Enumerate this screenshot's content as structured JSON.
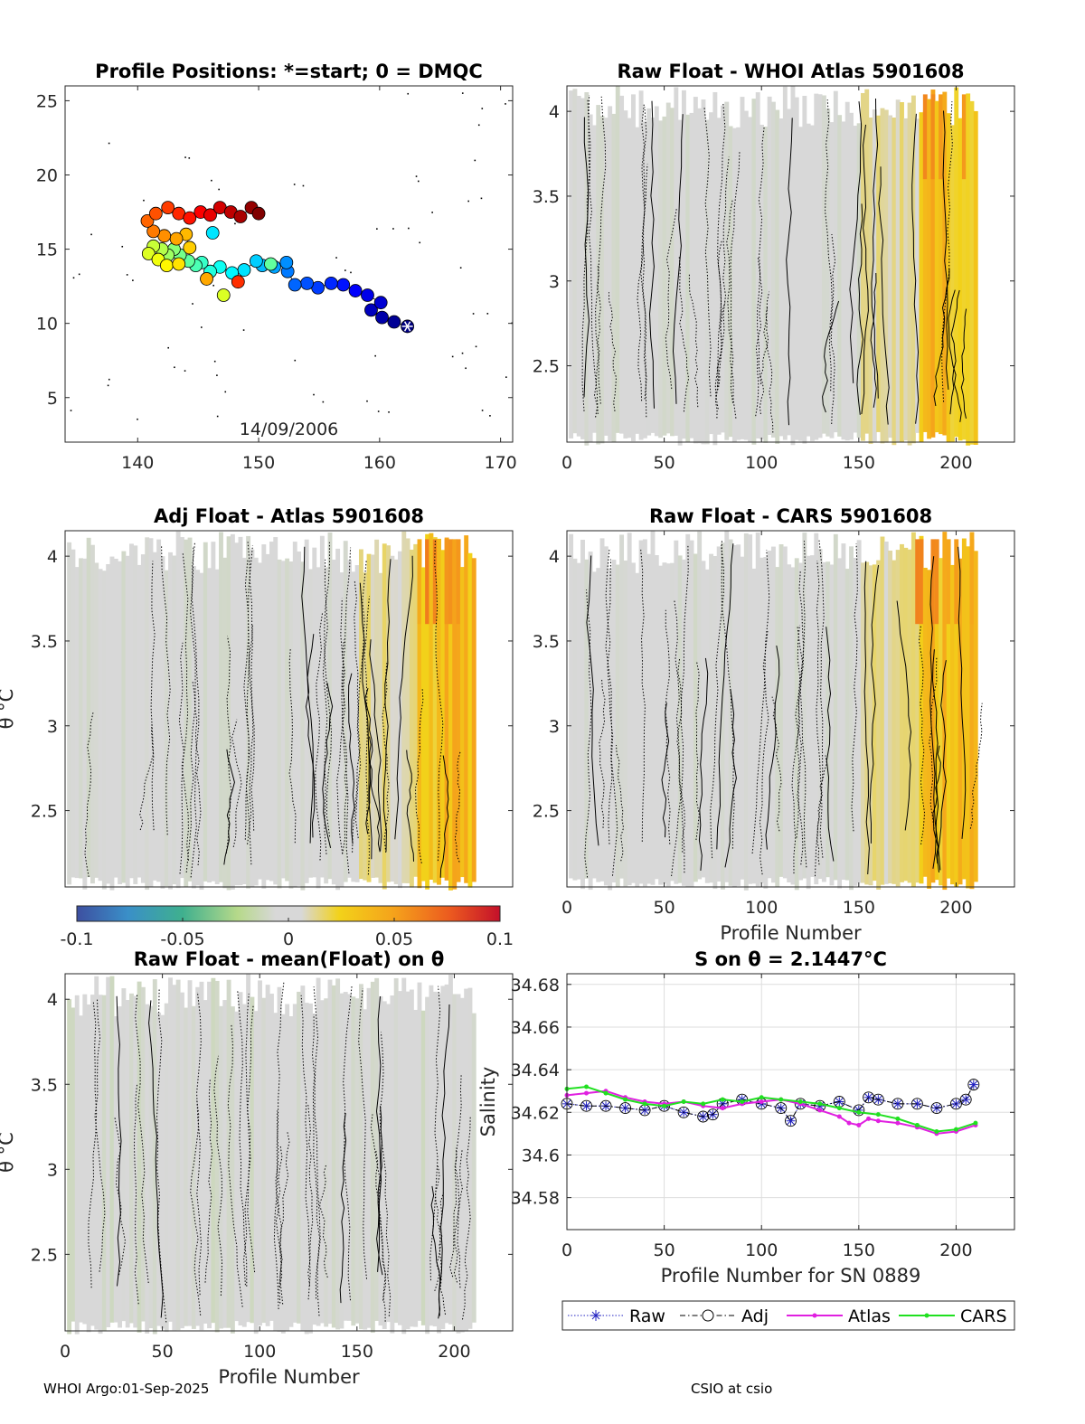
{
  "footer": {
    "left": "WHOI Argo:01-Sep-2025",
    "right": "CSIO at csio"
  },
  "colorbar": {
    "min": -0.1,
    "max": 0.1,
    "ticks": [
      -0.1,
      -0.05,
      0,
      0.05,
      0.1
    ],
    "tick_labels": [
      "-0.1",
      "-0.05",
      "0",
      "0.05",
      "0.1"
    ],
    "colormap": "parula-like diverging"
  },
  "chart_data": [
    {
      "id": "positions",
      "type": "scatter",
      "title": "Profile Positions: *=start; 0 = DMQC",
      "xlim": [
        134,
        171
      ],
      "ylim": [
        2,
        26
      ],
      "xticks": [
        140,
        150,
        160,
        170
      ],
      "yticks": [
        5,
        10,
        15,
        20,
        25
      ],
      "annotation": "14/09/2006",
      "track": [
        [
          162.3,
          9.8
        ],
        [
          161.2,
          10.1
        ],
        [
          160.2,
          10.4
        ],
        [
          159.3,
          10.9
        ],
        [
          160.1,
          11.4
        ],
        [
          159.0,
          11.9
        ],
        [
          158.0,
          12.2
        ],
        [
          157.0,
          12.6
        ],
        [
          156.0,
          12.7
        ],
        [
          154.9,
          12.4
        ],
        [
          154.0,
          12.7
        ],
        [
          153.0,
          12.6
        ],
        [
          152.4,
          13.5
        ],
        [
          152.3,
          14.1
        ],
        [
          151.3,
          13.8
        ],
        [
          150.3,
          13.9
        ],
        [
          149.8,
          14.2
        ],
        [
          148.8,
          13.6
        ],
        [
          147.8,
          13.4
        ],
        [
          146.8,
          13.8
        ],
        [
          146.0,
          13.5
        ],
        [
          145.3,
          14.1
        ],
        [
          144.8,
          13.9
        ],
        [
          144.2,
          14.2
        ],
        [
          143.5,
          14.6
        ],
        [
          143.0,
          15.0
        ],
        [
          142.5,
          14.6
        ],
        [
          142.0,
          15.0
        ],
        [
          141.3,
          15.2
        ],
        [
          140.9,
          14.7
        ],
        [
          141.7,
          14.3
        ],
        [
          142.4,
          13.9
        ],
        [
          143.4,
          14.0
        ],
        [
          144.3,
          15.1
        ],
        [
          144.0,
          16.0
        ],
        [
          143.2,
          15.7
        ],
        [
          142.2,
          15.9
        ],
        [
          141.3,
          16.2
        ],
        [
          140.8,
          16.9
        ],
        [
          141.5,
          17.4
        ],
        [
          142.5,
          17.8
        ],
        [
          143.4,
          17.4
        ],
        [
          144.3,
          17.1
        ],
        [
          145.2,
          17.5
        ],
        [
          146.0,
          17.3
        ],
        [
          146.8,
          17.8
        ],
        [
          147.7,
          17.5
        ],
        [
          148.5,
          17.2
        ],
        [
          149.4,
          17.8
        ],
        [
          150.0,
          17.4
        ]
      ],
      "extra_points": [
        [
          146.2,
          16.1
        ],
        [
          151.0,
          14.0
        ],
        [
          147.1,
          11.9
        ],
        [
          145.7,
          13.0
        ],
        [
          148.3,
          12.8
        ]
      ]
    },
    {
      "id": "raw-whoi-atlas",
      "type": "heatmap",
      "title": "Raw Float - WHOI Atlas  5901608",
      "xlim": [
        0,
        230
      ],
      "ylim": [
        2.05,
        4.15
      ],
      "xticks": [
        0,
        50,
        100,
        150,
        200
      ],
      "yticks": [
        2.5,
        3,
        3.5,
        4
      ],
      "xlabel": "",
      "ylabel": "",
      "bias": "yellow-late"
    },
    {
      "id": "adj-atlas",
      "type": "heatmap",
      "title": "Adj Float - Atlas  5901608",
      "xlim": [
        0,
        230
      ],
      "ylim": [
        2.05,
        4.15
      ],
      "xticks": [],
      "yticks": [
        2.5,
        3,
        3.5,
        4
      ],
      "xlabel": "",
      "ylabel": "θ °C",
      "bias": "yellow-late"
    },
    {
      "id": "raw-cars",
      "type": "heatmap",
      "title": "Raw Float - CARS  5901608",
      "xlim": [
        0,
        230
      ],
      "ylim": [
        2.05,
        4.15
      ],
      "xticks": [
        0,
        50,
        100,
        150,
        200
      ],
      "yticks": [
        2.5,
        3,
        3.5,
        4
      ],
      "xlabel": "Profile Number",
      "ylabel": "",
      "bias": "yellow-late"
    },
    {
      "id": "raw-mean",
      "type": "heatmap",
      "title": "Raw Float - mean(Float) on θ",
      "xlim": [
        0,
        230
      ],
      "ylim": [
        2.05,
        4.15
      ],
      "xticks": [
        0,
        50,
        100,
        150,
        200
      ],
      "yticks": [
        2.5,
        3,
        3.5,
        4
      ],
      "xlabel": "Profile Number",
      "ylabel": "θ °C",
      "bias": "green-faint"
    },
    {
      "id": "salinity",
      "type": "line",
      "title": "S on θ = 2.1447°C",
      "xlim": [
        0,
        230
      ],
      "ylim": [
        34.565,
        34.685
      ],
      "xticks": [
        0,
        50,
        100,
        150,
        200
      ],
      "yticks": [
        34.58,
        34.6,
        34.62,
        34.64,
        34.66,
        34.68
      ],
      "ytick_labels": [
        "34.58",
        "34.6",
        "34.62",
        "34.64",
        "34.66",
        "34.68"
      ],
      "xlabel": "Profile Number for SN 0889",
      "ylabel": "Salinity",
      "legend": [
        "Raw",
        "Adj",
        "Atlas",
        "CARS"
      ],
      "series": [
        {
          "name": "Raw",
          "color": "#2020c0",
          "x": [
            0,
            10,
            20,
            30,
            40,
            50,
            60,
            70,
            75,
            80,
            90,
            100,
            110,
            115,
            120,
            130,
            140,
            150,
            155,
            160,
            170,
            180,
            190,
            200,
            205,
            209
          ],
          "y": [
            34.624,
            34.623,
            34.623,
            34.622,
            34.621,
            34.623,
            34.62,
            34.618,
            34.619,
            34.624,
            34.626,
            34.624,
            34.622,
            34.616,
            34.624,
            34.623,
            34.625,
            34.621,
            34.627,
            34.626,
            34.624,
            34.624,
            34.622,
            34.624,
            34.626,
            34.633
          ]
        },
        {
          "name": "Adj",
          "color": "#000000",
          "x": [
            0,
            10,
            20,
            30,
            40,
            50,
            60,
            70,
            75,
            80,
            90,
            100,
            110,
            115,
            120,
            130,
            140,
            150,
            155,
            160,
            170,
            180,
            190,
            200,
            205,
            209
          ],
          "y": [
            34.624,
            34.623,
            34.623,
            34.622,
            34.621,
            34.623,
            34.62,
            34.618,
            34.619,
            34.624,
            34.626,
            34.624,
            34.622,
            34.616,
            34.624,
            34.623,
            34.625,
            34.621,
            34.627,
            34.626,
            34.624,
            34.624,
            34.622,
            34.624,
            34.626,
            34.633
          ]
        },
        {
          "name": "Atlas",
          "color": "#e020e0",
          "x": [
            0,
            10,
            20,
            30,
            40,
            50,
            60,
            70,
            80,
            90,
            100,
            110,
            120,
            130,
            140,
            145,
            150,
            155,
            160,
            170,
            180,
            190,
            200,
            210
          ],
          "y": [
            34.628,
            34.629,
            34.63,
            34.627,
            34.625,
            34.624,
            34.625,
            34.623,
            34.622,
            34.624,
            34.625,
            34.626,
            34.624,
            34.621,
            34.618,
            34.615,
            34.614,
            34.617,
            34.616,
            34.615,
            34.613,
            34.61,
            34.611,
            34.614
          ]
        },
        {
          "name": "CARS",
          "color": "#20e020",
          "x": [
            0,
            10,
            20,
            30,
            40,
            50,
            60,
            70,
            80,
            90,
            100,
            110,
            120,
            130,
            140,
            150,
            160,
            170,
            180,
            190,
            200,
            210
          ],
          "y": [
            34.631,
            34.632,
            34.629,
            34.626,
            34.624,
            34.623,
            34.625,
            34.624,
            34.626,
            34.625,
            34.627,
            34.626,
            34.625,
            34.624,
            34.622,
            34.62,
            34.619,
            34.617,
            34.614,
            34.611,
            34.612,
            34.615
          ]
        }
      ]
    }
  ]
}
